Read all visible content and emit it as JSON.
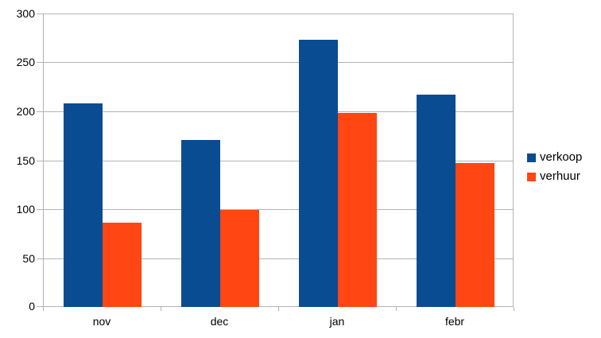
{
  "chart_data": {
    "type": "bar",
    "title": "",
    "xlabel": "",
    "ylabel": "",
    "categories": [
      "nov",
      "dec",
      "jan",
      "febr"
    ],
    "series": [
      {
        "name": "verkoop",
        "color": "#0a4c92",
        "values": [
          208,
          171,
          273,
          217
        ]
      },
      {
        "name": "verhuur",
        "color": "#ff4613",
        "values": [
          86,
          99,
          198,
          147
        ]
      }
    ],
    "ylim": [
      0,
      300
    ],
    "yticks": [
      0,
      50,
      100,
      150,
      200,
      250,
      300
    ],
    "grid": "horizontal",
    "gridline_color": "#b3b3b3",
    "legend_position": "right",
    "background_color": "#ffffff",
    "text_color": "#000000"
  }
}
